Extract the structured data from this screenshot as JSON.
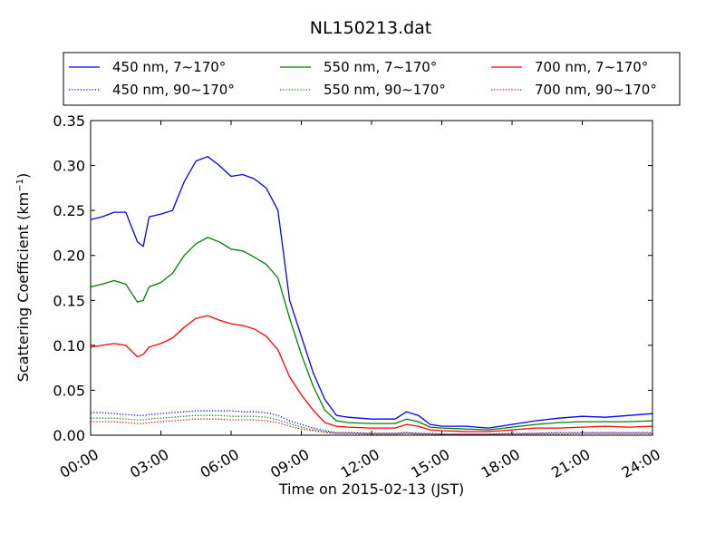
{
  "chart_data": {
    "type": "line",
    "title": "NL150213.dat",
    "xlabel": "Time on 2015-02-13 (JST)",
    "ylabel_main": "Scattering Coefficient (km",
    "ylabel_sup": "−1",
    "ylabel_close": ")",
    "x_unit": "hours",
    "xlim": [
      0,
      24
    ],
    "ylim": [
      0,
      0.35
    ],
    "grid": false,
    "legend_position": "top, above plot, 3 columns",
    "x_ticks": [
      0,
      3,
      6,
      9,
      12,
      15,
      18,
      21,
      24
    ],
    "x_tick_labels": [
      "00:00",
      "03:00",
      "06:00",
      "09:00",
      "12:00",
      "15:00",
      "18:00",
      "21:00",
      "24:00"
    ],
    "y_ticks": [
      0,
      0.05,
      0.1,
      0.15,
      0.2,
      0.25,
      0.3,
      0.35
    ],
    "y_tick_labels": [
      "0.00",
      "0.05",
      "0.10",
      "0.15",
      "0.20",
      "0.25",
      "0.30",
      "0.35"
    ],
    "x": [
      0,
      0.5,
      1,
      1.5,
      2,
      2.25,
      2.5,
      3,
      3.5,
      4,
      4.5,
      5,
      5.5,
      6,
      6.5,
      7,
      7.5,
      8,
      8.5,
      9,
      9.5,
      10,
      10.5,
      11,
      12,
      13,
      13.5,
      14,
      14.5,
      15,
      16,
      17,
      18,
      19,
      20,
      21,
      22,
      23,
      24
    ],
    "series": [
      {
        "name": "450 nm, 7∼170°",
        "color": "#0000ff",
        "style": "solid",
        "values": [
          0.24,
          0.243,
          0.248,
          0.248,
          0.215,
          0.21,
          0.243,
          0.246,
          0.25,
          0.282,
          0.305,
          0.31,
          0.3,
          0.288,
          0.29,
          0.285,
          0.275,
          0.25,
          0.15,
          0.11,
          0.07,
          0.04,
          0.022,
          0.02,
          0.018,
          0.018,
          0.026,
          0.022,
          0.012,
          0.01,
          0.01,
          0.008,
          0.012,
          0.016,
          0.019,
          0.021,
          0.02,
          0.022,
          0.024
        ]
      },
      {
        "name": "550 nm, 7∼170°",
        "color": "#008000",
        "style": "solid",
        "values": [
          0.165,
          0.168,
          0.172,
          0.168,
          0.148,
          0.15,
          0.165,
          0.17,
          0.18,
          0.2,
          0.213,
          0.22,
          0.215,
          0.207,
          0.205,
          0.198,
          0.19,
          0.175,
          0.13,
          0.09,
          0.055,
          0.028,
          0.016,
          0.014,
          0.013,
          0.013,
          0.018,
          0.015,
          0.009,
          0.008,
          0.007,
          0.006,
          0.009,
          0.012,
          0.014,
          0.015,
          0.015,
          0.015,
          0.016
        ]
      },
      {
        "name": "700 nm, 7∼170°",
        "color": "#ff0000",
        "style": "solid",
        "values": [
          0.098,
          0.1,
          0.102,
          0.1,
          0.087,
          0.09,
          0.098,
          0.102,
          0.108,
          0.12,
          0.13,
          0.133,
          0.128,
          0.124,
          0.122,
          0.118,
          0.11,
          0.095,
          0.065,
          0.045,
          0.028,
          0.014,
          0.01,
          0.009,
          0.008,
          0.008,
          0.012,
          0.01,
          0.006,
          0.005,
          0.004,
          0.004,
          0.006,
          0.008,
          0.008,
          0.009,
          0.01,
          0.009,
          0.01
        ]
      },
      {
        "name": "450 nm, 90∼170°",
        "color": "#0000ff",
        "style": "dotted",
        "values": [
          0.025,
          0.025,
          0.024,
          0.023,
          0.022,
          0.022,
          0.023,
          0.024,
          0.025,
          0.026,
          0.027,
          0.027,
          0.027,
          0.027,
          0.026,
          0.026,
          0.025,
          0.022,
          0.016,
          0.012,
          0.008,
          0.005,
          0.003,
          0.003,
          0.002,
          0.002,
          0.003,
          0.002,
          0.002,
          0.001,
          0.001,
          0.001,
          0.002,
          0.002,
          0.003,
          0.003,
          0.003,
          0.003,
          0.003
        ]
      },
      {
        "name": "550 nm, 90∼170°",
        "color": "#008000",
        "style": "dotted",
        "values": [
          0.019,
          0.019,
          0.019,
          0.018,
          0.017,
          0.017,
          0.018,
          0.019,
          0.02,
          0.021,
          0.022,
          0.022,
          0.022,
          0.021,
          0.021,
          0.021,
          0.02,
          0.017,
          0.013,
          0.009,
          0.006,
          0.004,
          0.002,
          0.002,
          0.002,
          0.002,
          0.002,
          0.002,
          0.001,
          0.001,
          0.001,
          0.001,
          0.001,
          0.002,
          0.002,
          0.002,
          0.002,
          0.002,
          0.002
        ]
      },
      {
        "name": "700 nm, 90∼170°",
        "color": "#ff0000",
        "style": "dotted",
        "values": [
          0.015,
          0.015,
          0.015,
          0.014,
          0.013,
          0.013,
          0.014,
          0.015,
          0.016,
          0.017,
          0.018,
          0.018,
          0.018,
          0.017,
          0.017,
          0.017,
          0.016,
          0.014,
          0.01,
          0.007,
          0.005,
          0.003,
          0.002,
          0.002,
          0.001,
          0.001,
          0.002,
          0.001,
          0.001,
          0.001,
          0.001,
          0.001,
          0.001,
          0.001,
          0.001,
          0.002,
          0.002,
          0.002,
          0.002
        ]
      }
    ]
  }
}
